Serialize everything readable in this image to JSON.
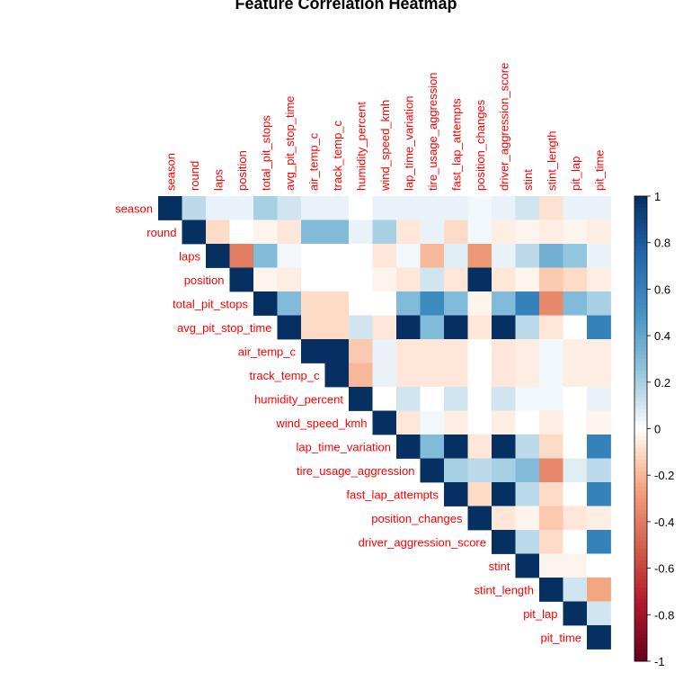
{
  "chart_data": {
    "type": "heatmap",
    "title": "Feature Correlation Heatmap",
    "layout": "upper-triangle",
    "variables": [
      "season",
      "round",
      "laps",
      "position",
      "total_pit_stops",
      "avg_pit_stop_time",
      "air_temp_c",
      "track_temp_c",
      "humidity_percent",
      "wind_speed_kmh",
      "lap_time_variation",
      "tire_usage_aggression",
      "fast_lap_attempts",
      "position_changes",
      "driver_aggression_score",
      "stint",
      "stint_length",
      "pit_lap",
      "pit_time"
    ],
    "matrix": [
      [
        1,
        0.15,
        0.05,
        0.05,
        0.2,
        0.1,
        0.05,
        0.05,
        0,
        0.05,
        0.05,
        0.05,
        0.05,
        0.03,
        0.05,
        0.1,
        -0.08,
        0.05,
        0.05
      ],
      [
        0.15,
        1,
        -0.1,
        0,
        -0.03,
        -0.07,
        0.3,
        0.3,
        0.05,
        0.2,
        -0.07,
        0.05,
        -0.1,
        0.03,
        -0.05,
        -0.03,
        -0.05,
        -0.03,
        -0.05
      ],
      [
        0.05,
        -0.1,
        1,
        -0.4,
        0.3,
        0.03,
        0,
        0,
        0,
        -0.07,
        0.03,
        -0.2,
        0.07,
        -0.3,
        0.05,
        0.15,
        0.35,
        0.25,
        0.05
      ],
      [
        0.05,
        0,
        -0.4,
        1,
        -0.03,
        -0.05,
        0,
        0,
        0,
        -0.03,
        -0.07,
        0.1,
        -0.07,
        1,
        -0.07,
        -0.03,
        -0.15,
        -0.1,
        -0.05
      ],
      [
        0.2,
        -0.03,
        0.3,
        -0.03,
        1,
        0.3,
        -0.1,
        -0.1,
        0,
        0,
        0.3,
        0.55,
        0.3,
        -0.03,
        0.3,
        0.6,
        -0.35,
        0.3,
        0.2
      ],
      [
        0.1,
        -0.07,
        0.03,
        -0.05,
        0.3,
        1,
        -0.1,
        -0.1,
        0.1,
        -0.07,
        1,
        0.3,
        1,
        -0.07,
        1,
        0.15,
        -0.07,
        0,
        0.6
      ],
      [
        0.05,
        0.3,
        0,
        0,
        -0.1,
        -0.1,
        1,
        1,
        -0.15,
        0.05,
        -0.07,
        -0.07,
        -0.07,
        0,
        -0.07,
        -0.05,
        0.03,
        -0.05,
        -0.05
      ],
      [
        0.05,
        0.3,
        0,
        0,
        -0.1,
        -0.1,
        1,
        1,
        -0.2,
        0.05,
        -0.07,
        -0.07,
        -0.07,
        0,
        -0.07,
        -0.05,
        0.03,
        -0.05,
        -0.05
      ],
      [
        0,
        0.05,
        0,
        0,
        0,
        0.1,
        -0.15,
        -0.2,
        1,
        0,
        0.1,
        0,
        0.1,
        0,
        0.1,
        0.03,
        0.03,
        0,
        0.05
      ],
      [
        0.05,
        0.2,
        -0.07,
        -0.03,
        0,
        -0.07,
        0.05,
        0.05,
        0,
        1,
        -0.07,
        0.03,
        -0.05,
        0,
        -0.05,
        0,
        -0.05,
        0,
        -0.03
      ],
      [
        0.05,
        -0.07,
        0.03,
        -0.07,
        0.3,
        1,
        -0.07,
        -0.07,
        0.1,
        -0.07,
        1,
        0.3,
        1,
        -0.07,
        1,
        0.15,
        -0.1,
        0,
        0.6
      ],
      [
        0.05,
        0.05,
        -0.2,
        0.1,
        0.55,
        0.3,
        -0.07,
        -0.07,
        0,
        0.03,
        0.3,
        1,
        0.2,
        0.15,
        0.2,
        0.3,
        -0.35,
        0.07,
        0.15
      ],
      [
        0.05,
        -0.1,
        0.07,
        -0.07,
        0.3,
        1,
        -0.07,
        -0.07,
        0.1,
        -0.05,
        1,
        0.2,
        1,
        -0.1,
        1,
        0.15,
        -0.1,
        0,
        0.6
      ],
      [
        0.03,
        0.03,
        -0.3,
        1,
        -0.03,
        -0.07,
        0,
        0,
        0,
        0,
        -0.07,
        0.15,
        -0.1,
        1,
        -0.07,
        -0.03,
        -0.15,
        -0.07,
        -0.05
      ],
      [
        0.05,
        -0.05,
        0.05,
        -0.07,
        0.3,
        1,
        -0.07,
        -0.07,
        0.1,
        -0.05,
        1,
        0.2,
        1,
        -0.07,
        1,
        0.15,
        -0.1,
        0,
        0.6
      ],
      [
        0.1,
        -0.03,
        0.15,
        -0.03,
        0.6,
        0.15,
        -0.05,
        -0.05,
        0.03,
        0,
        0.15,
        0.3,
        0.15,
        -0.03,
        0.15,
        1,
        -0.03,
        -0.03,
        0
      ],
      [
        -0.08,
        -0.05,
        0.35,
        -0.15,
        -0.35,
        -0.07,
        0.03,
        0.03,
        0.03,
        -0.05,
        -0.1,
        -0.35,
        -0.1,
        -0.15,
        -0.1,
        -0.03,
        1,
        0.1,
        -0.25
      ],
      [
        0.05,
        -0.03,
        0.25,
        -0.1,
        0.3,
        0,
        -0.05,
        -0.05,
        0,
        0,
        0,
        0.07,
        0,
        -0.07,
        0,
        -0.03,
        0.1,
        1,
        0.1
      ],
      [
        0.05,
        -0.05,
        0.05,
        -0.05,
        0.2,
        0.6,
        -0.05,
        -0.05,
        0.05,
        -0.03,
        0.6,
        0.15,
        0.6,
        -0.05,
        0.6,
        0,
        -0.25,
        0.1,
        1
      ]
    ],
    "colorbar": {
      "min": -1,
      "max": 1,
      "ticks": [
        "1",
        "0.8",
        "0.6",
        "0.4",
        "0.2",
        "0",
        "-0.2",
        "-0.4",
        "-0.6",
        "-0.8",
        "-1"
      ],
      "colors": {
        "neg_end": "#67001f",
        "mid": "#ffffff",
        "pos_end": "#053061"
      }
    },
    "label_color": "#ff0000",
    "grid": false,
    "legend": "right"
  }
}
